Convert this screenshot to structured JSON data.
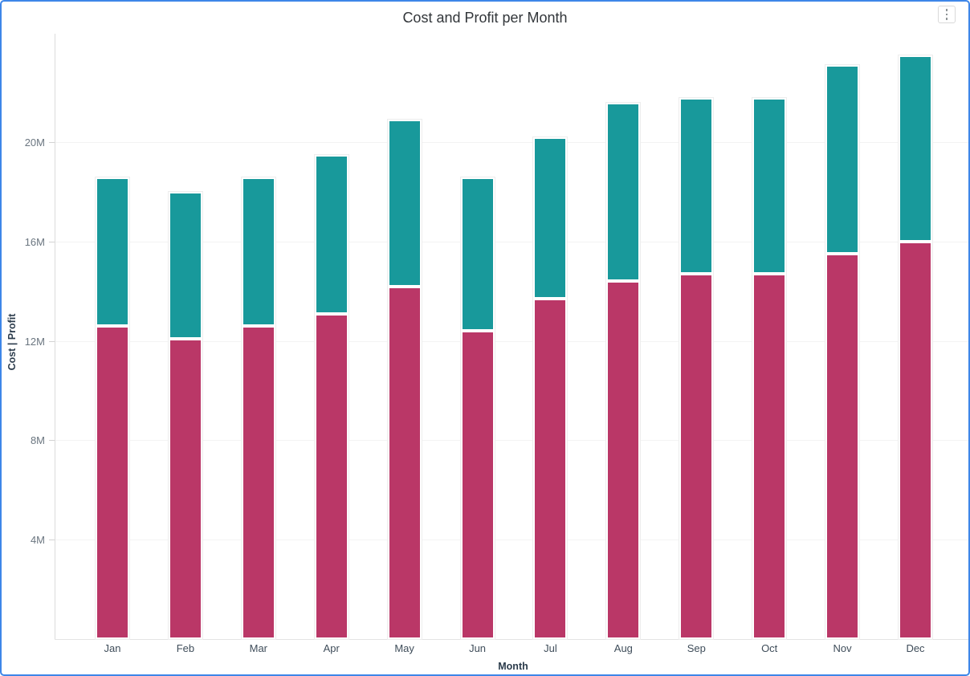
{
  "page": {
    "border_color": "#3e86e8",
    "background_color": "#ffffff"
  },
  "header": {
    "title": "Cost and Profit per Month",
    "menu_icon": "kebab-vertical-menu"
  },
  "chart_data": {
    "type": "bar",
    "stacked": true,
    "title": "Cost and Profit per Month",
    "xlabel": "Month",
    "ylabel": "Cost  |  Profit",
    "categories": [
      "Jan",
      "Feb",
      "Mar",
      "Apr",
      "May",
      "Jun",
      "Jul",
      "Aug",
      "Sep",
      "Oct",
      "Nov",
      "Dec"
    ],
    "series": [
      {
        "name": "Cost",
        "color": "#ba3767",
        "values": [
          12.6,
          12.1,
          12.6,
          13.1,
          14.2,
          12.4,
          13.7,
          14.4,
          14.7,
          14.7,
          15.5,
          16.0
        ]
      },
      {
        "name": "Profit",
        "color": "#18999b",
        "values": [
          6.0,
          5.9,
          6.0,
          6.4,
          6.7,
          6.2,
          6.5,
          7.2,
          7.1,
          7.1,
          7.6,
          7.5
        ]
      }
    ],
    "totals": [
      18.6,
      18.0,
      18.6,
      19.5,
      20.9,
      18.6,
      20.2,
      21.6,
      21.8,
      21.8,
      23.1,
      23.5
    ],
    "unit": "M",
    "y_ticks": [
      "4M",
      "8M",
      "12M",
      "16M",
      "20M"
    ],
    "y_tick_values": [
      4,
      8,
      12,
      16,
      20
    ],
    "ylim": [
      0,
      24.4
    ],
    "grid": true,
    "legend_position": "none"
  }
}
